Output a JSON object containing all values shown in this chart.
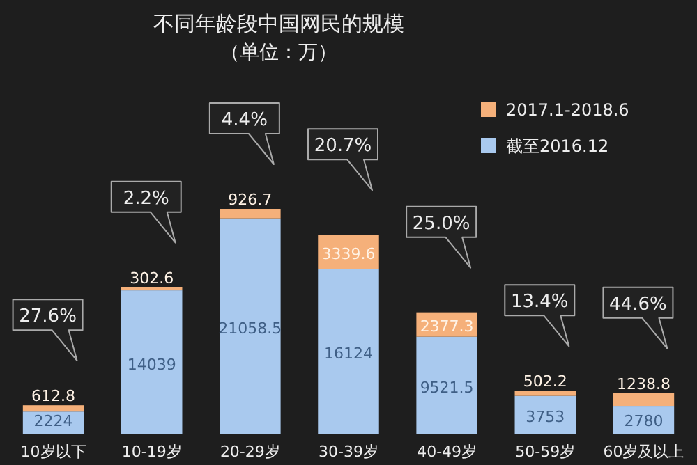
{
  "chart_data": {
    "type": "bar",
    "title": "不同年龄段中国网民的规模",
    "subtitle": "（单位：万）",
    "stacked": true,
    "data_labels": true,
    "legend": "top right",
    "categories": [
      "10岁以下",
      "10-19岁",
      "20-29岁",
      "30-39岁",
      "40-49岁",
      "50-59岁",
      "60岁及以上"
    ],
    "series": [
      {
        "name": "截至2016.12",
        "color": "#a9c9ee",
        "values": [
          2224,
          14039,
          21058.5,
          16124,
          9521.5,
          3753,
          2780
        ]
      },
      {
        "name": "2017.1-2018.6",
        "color": "#f5b07a",
        "values": [
          612.8,
          302.6,
          926.7,
          3339.6,
          2377.3,
          502.2,
          1238.8
        ]
      }
    ],
    "annotations": [
      "27.6%",
      "2.2%",
      "4.4%",
      "20.7%",
      "25.0%",
      "13.4%",
      "44.6%"
    ]
  }
}
